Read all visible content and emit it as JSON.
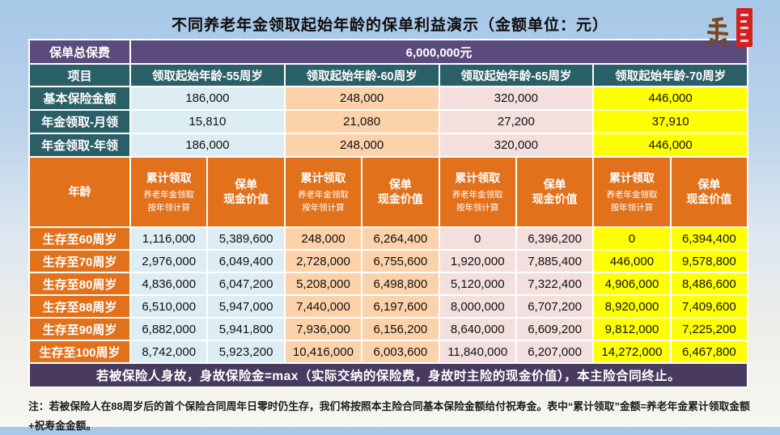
{
  "title": "不同养老年金领取起始年龄的保单利益演示（金额单位：元）",
  "summary": {
    "label": "保单总保费",
    "value": "6,000,000元"
  },
  "columns_header": {
    "label": "项目",
    "columns": [
      "领取起始年龄-55周岁",
      "领取起始年龄-60周岁",
      "领取起始年龄-65周岁",
      "领取起始年龄-70周岁"
    ]
  },
  "info_rows": [
    {
      "label": "基本保险金额",
      "values": [
        "186,000",
        "248,000",
        "320,000",
        "446,000"
      ]
    },
    {
      "label": "年金领取-月领",
      "values": [
        "15,810",
        "21,080",
        "27,200",
        "37,910"
      ]
    },
    {
      "label": "年金领取-年领",
      "values": [
        "186,000",
        "248,000",
        "320,000",
        "446,000"
      ]
    }
  ],
  "detail_header": {
    "age_label": "年龄",
    "cumulative_label": "累计领取",
    "cumulative_sub1": "养老年金领取",
    "cumulative_sub2": "按年领计算",
    "cash_line1": "保单",
    "cash_line2": "现金价值"
  },
  "detail_rows": [
    {
      "label": "生存至60周岁",
      "values": [
        "1,116,000",
        "5,389,600",
        "248,000",
        "6,264,400",
        "0",
        "6,396,200",
        "0",
        "6,394,400"
      ]
    },
    {
      "label": "生存至70周岁",
      "values": [
        "2,976,000",
        "6,049,400",
        "2,728,000",
        "6,755,600",
        "1,920,000",
        "7,885,400",
        "446,000",
        "9,578,800"
      ]
    },
    {
      "label": "生存至80周岁",
      "values": [
        "4,836,000",
        "6,047,200",
        "5,208,000",
        "6,498,800",
        "5,120,000",
        "7,322,400",
        "4,906,000",
        "8,486,600"
      ]
    },
    {
      "label": "生存至88周岁",
      "values": [
        "6,510,000",
        "5,947,000",
        "7,440,000",
        "6,197,600",
        "8,000,000",
        "6,707,200",
        "8,920,000",
        "7,409,600"
      ]
    },
    {
      "label": "生存至90周岁",
      "values": [
        "6,882,000",
        "5,941,800",
        "7,936,000",
        "6,156,200",
        "8,640,000",
        "6,609,200",
        "9,812,000",
        "7,225,200"
      ]
    },
    {
      "label": "生存至100周岁",
      "values": [
        "8,742,000",
        "5,923,200",
        "10,416,000",
        "6,003,600",
        "11,840,000",
        "6,207,000",
        "14,272,000",
        "6,467,800"
      ]
    }
  ],
  "death_benefit_note": "若被保险人身故，身故保险金=max（实际交纳的保险费，身故时主险的现金价值），本主险合同终止。",
  "bottom_note": "注：若被保险人在88周岁后的首个保险合同周年日零时仍生存，我们将按照本主险合同基本保险金额给付祝寿金。表中“累计领取”金额=养老年金累计领取金额+祝寿金金额。",
  "icons": {
    "seal": "red-signature-seal-icon"
  },
  "colors": {
    "purple_header": "#5b4b7c",
    "teal_header": "#2b5f68",
    "orange": "#e2711c",
    "column_55": "#ddedf4",
    "column_60": "#fbd2aa",
    "column_65": "#f3e0de",
    "column_70": "#feff00",
    "footer_band": "#483b5f",
    "seal_red": "#d42020"
  }
}
